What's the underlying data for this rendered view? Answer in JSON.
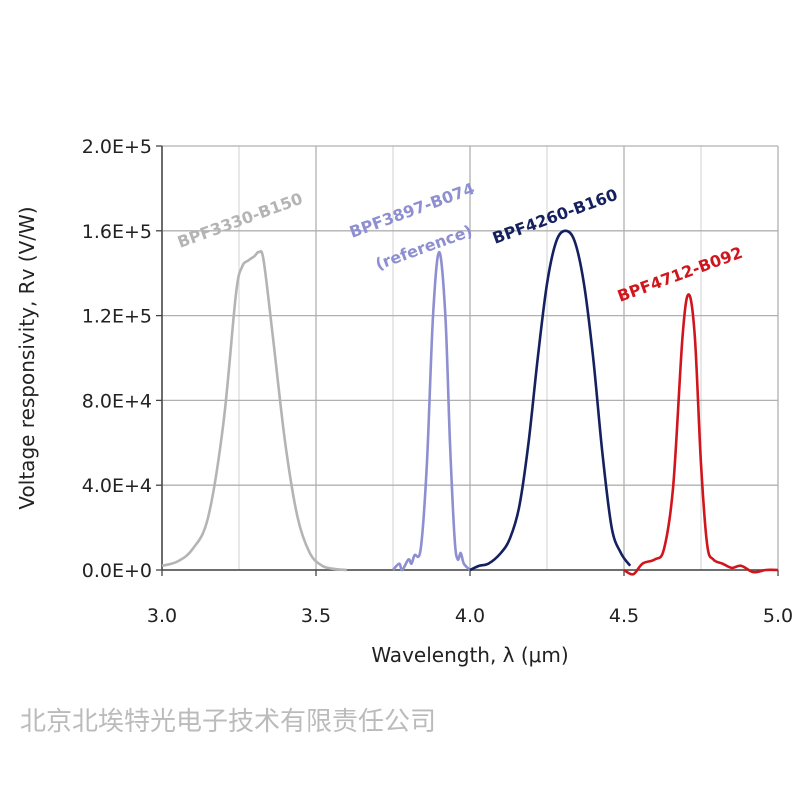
{
  "chart_data": {
    "type": "line",
    "xlabel": "Wavelength, λ (μm)",
    "ylabel": "Voltage responsivity, Rv (V/W)",
    "xlim": [
      3.0,
      5.0
    ],
    "ylim": [
      0,
      200000
    ],
    "xticks": [
      "3.0",
      "3.5",
      "4.0",
      "4.5",
      "5.0"
    ],
    "yticks": [
      "0.0E+0",
      "4.0E+4",
      "8.0E+4",
      "1.2E+5",
      "1.6E+5",
      "2.0E+5"
    ],
    "grid": true,
    "series": [
      {
        "name": "BPF3330-B150",
        "sub": "",
        "color": "#b4b4b4",
        "x": [
          3.0,
          3.05,
          3.1,
          3.15,
          3.2,
          3.24,
          3.26,
          3.28,
          3.3,
          3.315,
          3.33,
          3.36,
          3.4,
          3.44,
          3.48,
          3.52,
          3.56,
          3.6
        ],
        "y": [
          2000,
          4000,
          10000,
          25000,
          70000,
          130000,
          143000,
          146000,
          148000,
          150000,
          146000,
          110000,
          60000,
          25000,
          8000,
          2000,
          500,
          0
        ]
      },
      {
        "name": "BPF3897-B074",
        "sub": "(reference)",
        "color": "#8e8fd0",
        "x": [
          3.75,
          3.77,
          3.78,
          3.8,
          3.81,
          3.82,
          3.84,
          3.86,
          3.88,
          3.9,
          3.92,
          3.935,
          3.95,
          3.96,
          3.97,
          3.98,
          4.0
        ],
        "y": [
          0,
          3000,
          0,
          5000,
          3000,
          7000,
          10000,
          50000,
          120000,
          150000,
          120000,
          60000,
          15000,
          5000,
          8000,
          3000,
          0
        ]
      },
      {
        "name": "BPF4260-B160",
        "sub": "",
        "color": "#15205e",
        "x": [
          4.0,
          4.03,
          4.06,
          4.1,
          4.13,
          4.16,
          4.19,
          4.22,
          4.25,
          4.28,
          4.31,
          4.34,
          4.37,
          4.4,
          4.43,
          4.46,
          4.49,
          4.52
        ],
        "y": [
          0,
          2000,
          3000,
          8000,
          15000,
          30000,
          60000,
          100000,
          135000,
          155000,
          160000,
          155000,
          135000,
          100000,
          55000,
          20000,
          8000,
          2000
        ]
      },
      {
        "name": "BPF4712-B092",
        "sub": "",
        "color": "#d0161c",
        "x": [
          4.5,
          4.53,
          4.56,
          4.6,
          4.63,
          4.66,
          4.69,
          4.71,
          4.73,
          4.75,
          4.77,
          4.79,
          4.82,
          4.85,
          4.88,
          4.92,
          4.96,
          5.0
        ],
        "y": [
          0,
          -2000,
          3000,
          5000,
          10000,
          40000,
          110000,
          130000,
          110000,
          50000,
          12000,
          5000,
          3000,
          1000,
          2000,
          -1000,
          0,
          0
        ]
      }
    ]
  },
  "watermark": "北京北埃特光电子技术有限责任公司"
}
